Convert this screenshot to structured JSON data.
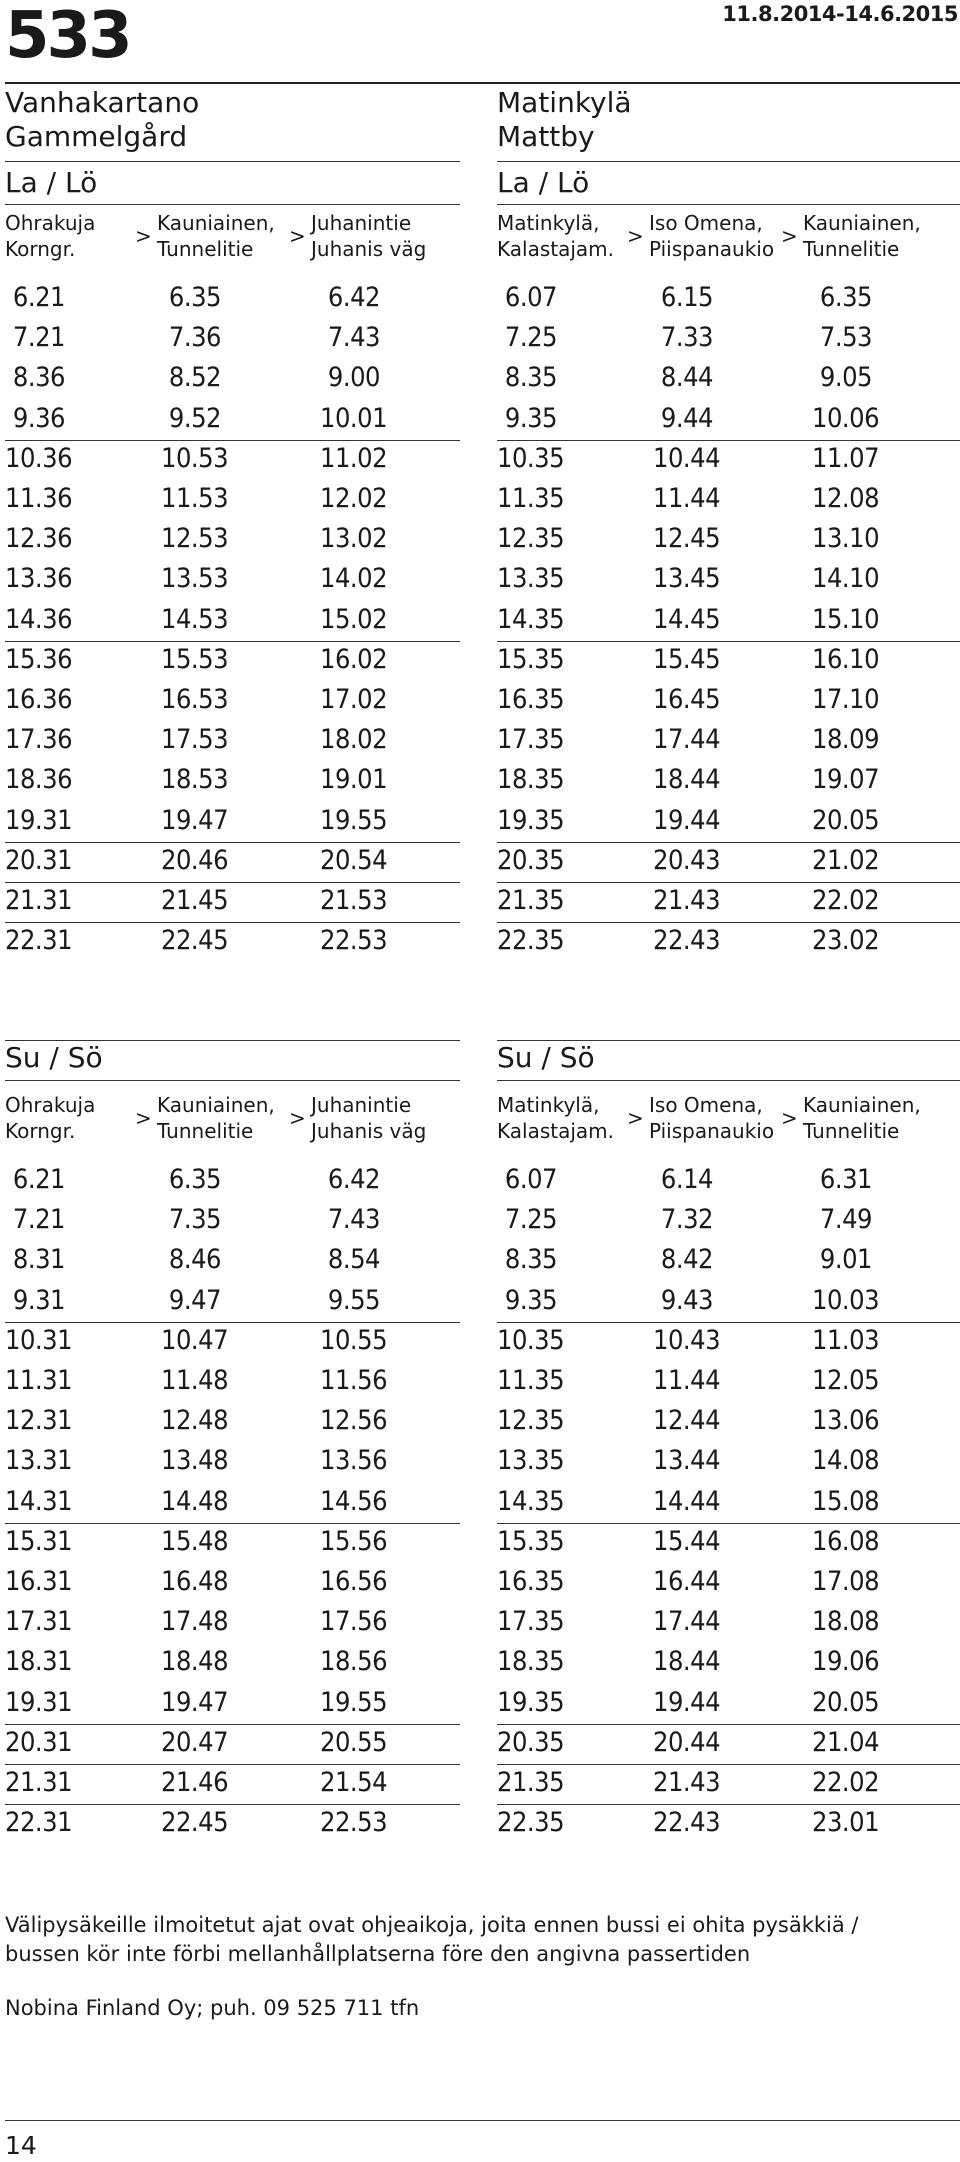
{
  "header": {
    "route": "533",
    "validity": "11.8.2014-14.6.2015"
  },
  "saturday": {
    "left": {
      "dest_fi": "Vanhakartano",
      "dest_sv": "Gammelgård",
      "day": "La / Lö",
      "stops": [
        {
          "l1": "Ohrakuja",
          "l2": "Korngr."
        },
        {
          "l1": "Kauniainen,",
          "l2": "Tunnelitie"
        },
        {
          "l1": "Juhanintie",
          "l2": "Juhanis väg"
        }
      ],
      "rows": [
        [
          "6.21",
          "6.35",
          "6.42"
        ],
        [
          "7.21",
          "7.36",
          "7.43"
        ],
        [
          "8.36",
          "8.52",
          "9.00"
        ],
        [
          "9.36",
          "9.52",
          "10.01"
        ],
        [
          "10.36",
          "10.53",
          "11.02"
        ],
        [
          "11.36",
          "11.53",
          "12.02"
        ],
        [
          "12.36",
          "12.53",
          "13.02"
        ],
        [
          "13.36",
          "13.53",
          "14.02"
        ],
        [
          "14.36",
          "14.53",
          "15.02"
        ],
        [
          "15.36",
          "15.53",
          "16.02"
        ],
        [
          "16.36",
          "16.53",
          "17.02"
        ],
        [
          "17.36",
          "17.53",
          "18.02"
        ],
        [
          "18.36",
          "18.53",
          "19.01"
        ],
        [
          "19.31",
          "19.47",
          "19.55"
        ],
        [
          "20.31",
          "20.46",
          "20.54"
        ],
        [
          "21.31",
          "21.45",
          "21.53"
        ],
        [
          "22.31",
          "22.45",
          "22.53"
        ]
      ]
    },
    "right": {
      "dest_fi": "Matinkylä",
      "dest_sv": "Mattby",
      "day": "La / Lö",
      "stops": [
        {
          "l1": "Matinkylä,",
          "l2": "Kalastajam."
        },
        {
          "l1": "Iso Omena,",
          "l2": "Piispanaukio"
        },
        {
          "l1": "Kauniainen,",
          "l2": "Tunnelitie"
        }
      ],
      "rows": [
        [
          "6.07",
          "6.15",
          "6.35"
        ],
        [
          "7.25",
          "7.33",
          "7.53"
        ],
        [
          "8.35",
          "8.44",
          "9.05"
        ],
        [
          "9.35",
          "9.44",
          "10.06"
        ],
        [
          "10.35",
          "10.44",
          "11.07"
        ],
        [
          "11.35",
          "11.44",
          "12.08"
        ],
        [
          "12.35",
          "12.45",
          "13.10"
        ],
        [
          "13.35",
          "13.45",
          "14.10"
        ],
        [
          "14.35",
          "14.45",
          "15.10"
        ],
        [
          "15.35",
          "15.45",
          "16.10"
        ],
        [
          "16.35",
          "16.45",
          "17.10"
        ],
        [
          "17.35",
          "17.44",
          "18.09"
        ],
        [
          "18.35",
          "18.44",
          "19.07"
        ],
        [
          "19.35",
          "19.44",
          "20.05"
        ],
        [
          "20.35",
          "20.43",
          "21.02"
        ],
        [
          "21.35",
          "21.43",
          "22.02"
        ],
        [
          "22.35",
          "22.43",
          "23.02"
        ]
      ]
    }
  },
  "sunday": {
    "left": {
      "day": "Su / Sö",
      "stops": [
        {
          "l1": "Ohrakuja",
          "l2": "Korngr."
        },
        {
          "l1": "Kauniainen,",
          "l2": "Tunnelitie"
        },
        {
          "l1": "Juhanintie",
          "l2": "Juhanis väg"
        }
      ],
      "rows": [
        [
          "6.21",
          "6.35",
          "6.42"
        ],
        [
          "7.21",
          "7.35",
          "7.43"
        ],
        [
          "8.31",
          "8.46",
          "8.54"
        ],
        [
          "9.31",
          "9.47",
          "9.55"
        ],
        [
          "10.31",
          "10.47",
          "10.55"
        ],
        [
          "11.31",
          "11.48",
          "11.56"
        ],
        [
          "12.31",
          "12.48",
          "12.56"
        ],
        [
          "13.31",
          "13.48",
          "13.56"
        ],
        [
          "14.31",
          "14.48",
          "14.56"
        ],
        [
          "15.31",
          "15.48",
          "15.56"
        ],
        [
          "16.31",
          "16.48",
          "16.56"
        ],
        [
          "17.31",
          "17.48",
          "17.56"
        ],
        [
          "18.31",
          "18.48",
          "18.56"
        ],
        [
          "19.31",
          "19.47",
          "19.55"
        ],
        [
          "20.31",
          "20.47",
          "20.55"
        ],
        [
          "21.31",
          "21.46",
          "21.54"
        ],
        [
          "22.31",
          "22.45",
          "22.53"
        ]
      ]
    },
    "right": {
      "day": "Su / Sö",
      "stops": [
        {
          "l1": "Matinkylä,",
          "l2": "Kalastajam."
        },
        {
          "l1": "Iso Omena,",
          "l2": "Piispanaukio"
        },
        {
          "l1": "Kauniainen,",
          "l2": "Tunnelitie"
        }
      ],
      "rows": [
        [
          "6.07",
          "6.14",
          "6.31"
        ],
        [
          "7.25",
          "7.32",
          "7.49"
        ],
        [
          "8.35",
          "8.42",
          "9.01"
        ],
        [
          "9.35",
          "9.43",
          "10.03"
        ],
        [
          "10.35",
          "10.43",
          "11.03"
        ],
        [
          "11.35",
          "11.44",
          "12.05"
        ],
        [
          "12.35",
          "12.44",
          "13.06"
        ],
        [
          "13.35",
          "13.44",
          "14.08"
        ],
        [
          "14.35",
          "14.44",
          "15.08"
        ],
        [
          "15.35",
          "15.44",
          "16.08"
        ],
        [
          "16.35",
          "16.44",
          "17.08"
        ],
        [
          "17.35",
          "17.44",
          "18.08"
        ],
        [
          "18.35",
          "18.44",
          "19.06"
        ],
        [
          "19.35",
          "19.44",
          "20.05"
        ],
        [
          "20.35",
          "20.44",
          "21.04"
        ],
        [
          "21.35",
          "21.43",
          "22.02"
        ],
        [
          "22.35",
          "22.43",
          "23.01"
        ]
      ]
    }
  },
  "arrow": ">",
  "footer": {
    "note_line1": "Välipysäkeille ilmoitetut ajat ovat ohjeaikoja, joita ennen bussi ei ohita pysäkkiä /",
    "note_line2": "bussen kör inte förbi mellanhållplatserna före den angivna passertiden",
    "publisher": "Nobina Finland Oy; puh. 09 525 711 tfn",
    "page": "14"
  }
}
